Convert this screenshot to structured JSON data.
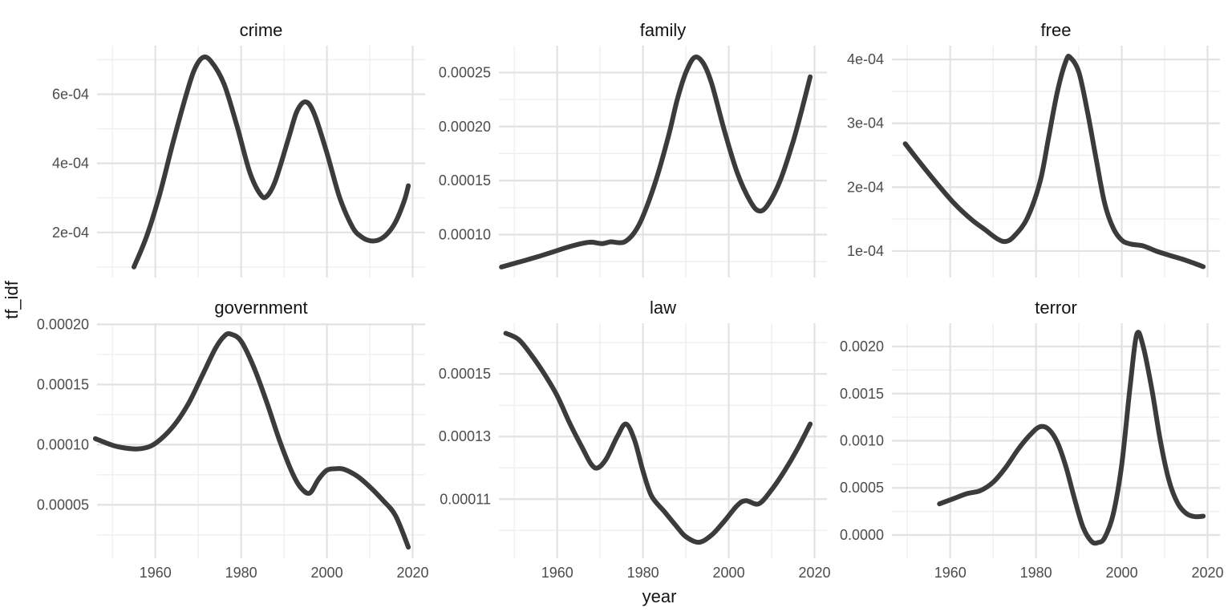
{
  "figure": {
    "ylabel": "tf_idf",
    "xlabel": "year",
    "background": "#ffffff",
    "line_color": "#3b3b3b",
    "line_width": 6,
    "grid_major_color": "#e2e2e2",
    "grid_minor_color": "#eeeeee",
    "axis_text_color": "#4c4c4c",
    "title_text_color": "#141414"
  },
  "chart_data": {
    "type": "line",
    "title": "",
    "xlabel": "year",
    "ylabel": "tf_idf",
    "grid": true,
    "legend": false,
    "xlim": [
      1946.4,
      2022.9
    ],
    "x_ticks": {
      "major": [
        {
          "v": 1960,
          "label": "1960"
        },
        {
          "v": 1980,
          "label": "1980"
        },
        {
          "v": 2000,
          "label": "2000"
        },
        {
          "v": 2020,
          "label": "2020"
        }
      ],
      "minor": [
        1950,
        1970,
        1990,
        2010
      ]
    },
    "facets": [
      {
        "title": "crime",
        "row": 0,
        "col": 0,
        "show_x_labels": false,
        "ylim": [
          6.95e-05,
          0.0007405
        ],
        "y_ticks": {
          "major": [
            {
              "v": 0.0002,
              "label": "2e-04"
            },
            {
              "v": 0.0004,
              "label": "4e-04"
            },
            {
              "v": 0.0006,
              "label": "6e-04"
            }
          ],
          "minor": [
            0.0001,
            0.0003,
            0.0005,
            0.0007
          ]
        },
        "points": [
          [
            1955,
            0.0001
          ],
          [
            1958,
            0.00019
          ],
          [
            1961,
            0.00031
          ],
          [
            1964,
            0.000455
          ],
          [
            1967,
            0.00059
          ],
          [
            1969,
            0.000668
          ],
          [
            1971,
            0.000706
          ],
          [
            1973,
            0.000695
          ],
          [
            1976,
            0.00063
          ],
          [
            1979,
            0.00051
          ],
          [
            1982,
            0.000375
          ],
          [
            1984.5,
            0.00031
          ],
          [
            1986,
            0.000305
          ],
          [
            1988,
            0.00035
          ],
          [
            1991,
            0.00047
          ],
          [
            1993,
            0.00055
          ],
          [
            1995,
            0.000578
          ],
          [
            1997,
            0.000545
          ],
          [
            2000,
            0.00043
          ],
          [
            2003,
            0.0003
          ],
          [
            2006,
            0.000215
          ],
          [
            2008,
            0.000188
          ],
          [
            2010,
            0.000176
          ],
          [
            2012,
            0.000178
          ],
          [
            2014,
            0.000195
          ],
          [
            2016,
            0.00023
          ],
          [
            2018,
            0.00029
          ],
          [
            2019,
            0.000335
          ]
        ]
      },
      {
        "title": "family",
        "row": 0,
        "col": 1,
        "show_x_labels": false,
        "ylim": [
          6.03e-05,
          0.0002748
        ],
        "y_ticks": {
          "major": [
            {
              "v": 0.0001,
              "label": "0.00010"
            },
            {
              "v": 0.00015,
              "label": "0.00015"
            },
            {
              "v": 0.0002,
              "label": "0.00020"
            },
            {
              "v": 0.00025,
              "label": "0.00025"
            }
          ],
          "minor": [
            7.5e-05,
            0.000125,
            0.000175,
            0.000225
          ]
        },
        "points": [
          [
            1947,
            7e-05
          ],
          [
            1951,
            7.45e-05
          ],
          [
            1955,
            7.9e-05
          ],
          [
            1959,
            8.4e-05
          ],
          [
            1963,
            8.9e-05
          ],
          [
            1966,
            9.2e-05
          ],
          [
            1968,
            9.3e-05
          ],
          [
            1970.5,
            9.17e-05
          ],
          [
            1972.5,
            9.33e-05
          ],
          [
            1974.5,
            9.25e-05
          ],
          [
            1976,
            9.4e-05
          ],
          [
            1978,
            0.000102
          ],
          [
            1980,
            0.000117
          ],
          [
            1983,
            0.00015
          ],
          [
            1986,
            0.000192
          ],
          [
            1988,
            0.000225
          ],
          [
            1990,
            0.00025
          ],
          [
            1992,
            0.000264
          ],
          [
            1994,
            0.000259
          ],
          [
            1996,
            0.00024
          ],
          [
            1999,
            0.000196
          ],
          [
            2002,
            0.000157
          ],
          [
            2005,
            0.000131
          ],
          [
            2007,
            0.000122
          ],
          [
            2009,
            0.000127
          ],
          [
            2012,
            0.00015
          ],
          [
            2015,
            0.000186
          ],
          [
            2017,
            0.000215
          ],
          [
            2019,
            0.000246
          ]
        ]
      },
      {
        "title": "free",
        "row": 0,
        "col": 2,
        "show_x_labels": false,
        "ylim": [
          5.85e-05,
          0.0004215
        ],
        "y_ticks": {
          "major": [
            {
              "v": 0.0001,
              "label": "1e-04"
            },
            {
              "v": 0.0002,
              "label": "2e-04"
            },
            {
              "v": 0.0003,
              "label": "3e-04"
            },
            {
              "v": 0.0004,
              "label": "4e-04"
            }
          ],
          "minor": [
            0.00015,
            0.00025,
            0.00035
          ]
        },
        "points": [
          [
            1949.5,
            0.000268
          ],
          [
            1953,
            0.000238
          ],
          [
            1957,
            0.000205
          ],
          [
            1961,
            0.000174
          ],
          [
            1965,
            0.000149
          ],
          [
            1968,
            0.000134
          ],
          [
            1971,
            0.000119
          ],
          [
            1973,
            0.000115
          ],
          [
            1975,
            0.000124
          ],
          [
            1978,
            0.000152
          ],
          [
            1981,
            0.00021
          ],
          [
            1983,
            0.00028
          ],
          [
            1985,
            0.00035
          ],
          [
            1987,
            0.000398
          ],
          [
            1988,
            0.000403
          ],
          [
            1990,
            0.00038
          ],
          [
            1992,
            0.000318
          ],
          [
            1994,
            0.000245
          ],
          [
            1996,
            0.000175
          ],
          [
            1998,
            0.000136
          ],
          [
            2000,
            0.000117
          ],
          [
            2002,
            0.000111
          ],
          [
            2005,
            0.000108
          ],
          [
            2008,
            0.0001
          ],
          [
            2011,
            9.35e-05
          ],
          [
            2014,
            8.75e-05
          ],
          [
            2017,
            8.05e-05
          ],
          [
            2019,
            7.55e-05
          ]
        ]
      },
      {
        "title": "government",
        "row": 1,
        "col": 0,
        "show_x_labels": true,
        "ylim": [
          5.6e-06,
          0.0002009
        ],
        "y_ticks": {
          "major": [
            {
              "v": 5e-05,
              "label": "0.00005"
            },
            {
              "v": 0.0001,
              "label": "0.00010"
            },
            {
              "v": 0.00015,
              "label": "0.00015"
            },
            {
              "v": 0.0002,
              "label": "0.00020"
            }
          ],
          "minor": [
            2.5e-05,
            7.5e-05,
            0.000125,
            0.000175
          ]
        },
        "points": [
          [
            1946,
            0.000105
          ],
          [
            1950,
            9.95e-05
          ],
          [
            1953,
            9.72e-05
          ],
          [
            1956,
            9.65e-05
          ],
          [
            1959,
            9.9e-05
          ],
          [
            1962,
            0.000107
          ],
          [
            1965,
            0.000119
          ],
          [
            1968,
            0.000136
          ],
          [
            1971,
            0.000158
          ],
          [
            1974,
            0.00018
          ],
          [
            1976,
            0.00019
          ],
          [
            1977.5,
            0.000192
          ],
          [
            1980,
            0.000186
          ],
          [
            1983,
            0.000164
          ],
          [
            1986,
            0.000135
          ],
          [
            1989,
            0.000103
          ],
          [
            1992,
            7.6e-05
          ],
          [
            1994,
            6.38e-05
          ],
          [
            1996,
            5.98e-05
          ],
          [
            1998,
            7.1e-05
          ],
          [
            2000,
            7.88e-05
          ],
          [
            2002,
            8e-05
          ],
          [
            2004,
            7.95e-05
          ],
          [
            2007,
            7.4e-05
          ],
          [
            2010,
            6.5e-05
          ],
          [
            2013,
            5.4e-05
          ],
          [
            2016,
            4.1e-05
          ],
          [
            2019,
            1.48e-05
          ]
        ]
      },
      {
        "title": "law",
        "row": 1,
        "col": 1,
        "show_x_labels": true,
        "ylim": [
          9.11e-05,
          0.0001662
        ],
        "y_ticks": {
          "major": [
            {
              "v": 0.00011,
              "label": "0.00011"
            },
            {
              "v": 0.00013,
              "label": "0.00013"
            },
            {
              "v": 0.00015,
              "label": "0.00015"
            }
          ],
          "minor": [
            0.0001,
            0.00012,
            0.00014,
            0.00016
          ]
        },
        "points": [
          [
            1948,
            0.000163
          ],
          [
            1951,
            0.000161
          ],
          [
            1954,
            0.000156
          ],
          [
            1957,
            0.00015
          ],
          [
            1960,
            0.000143
          ],
          [
            1963,
            0.000134
          ],
          [
            1966,
            0.000126
          ],
          [
            1968,
            0.000121
          ],
          [
            1969.5,
            0.00012
          ],
          [
            1971.5,
            0.000123
          ],
          [
            1974,
            0.00013
          ],
          [
            1976,
            0.000134
          ],
          [
            1978,
            0.000129
          ],
          [
            1980,
            0.000119
          ],
          [
            1982,
            0.000111
          ],
          [
            1985,
            0.000106
          ],
          [
            1988,
            0.000101
          ],
          [
            1990,
            9.8e-05
          ],
          [
            1993,
            9.62e-05
          ],
          [
            1996,
            9.85e-05
          ],
          [
            1999,
            0.000103
          ],
          [
            2002,
            0.000108
          ],
          [
            2004,
            0.0001095
          ],
          [
            2007,
            0.0001085
          ],
          [
            2010,
            0.000113
          ],
          [
            2013,
            0.000119
          ],
          [
            2016,
            0.000126
          ],
          [
            2019,
            0.000134
          ]
        ]
      },
      {
        "title": "terror",
        "row": 1,
        "col": 2,
        "show_x_labels": true,
        "ylim": [
          -0.000247,
          0.002247
        ],
        "y_ticks": {
          "major": [
            {
              "v": 0.0,
              "label": "0.0000"
            },
            {
              "v": 0.0005,
              "label": "0.0005"
            },
            {
              "v": 0.001,
              "label": "0.0010"
            },
            {
              "v": 0.0015,
              "label": "0.0015"
            },
            {
              "v": 0.002,
              "label": "0.0020"
            }
          ],
          "minor": [
            0.00025,
            0.00075,
            0.00125,
            0.00175
          ]
        },
        "points": [
          [
            1957.5,
            0.00033
          ],
          [
            1961,
            0.00039
          ],
          [
            1964,
            0.00044
          ],
          [
            1967,
            0.00047
          ],
          [
            1970,
            0.00056
          ],
          [
            1973,
            0.00072
          ],
          [
            1976,
            0.00092
          ],
          [
            1979,
            0.00108
          ],
          [
            1981,
            0.00115
          ],
          [
            1983,
            0.00112
          ],
          [
            1985,
            0.00098
          ],
          [
            1987,
            0.00072
          ],
          [
            1989,
            0.00038
          ],
          [
            1991,
            8e-05
          ],
          [
            1993,
            -7e-05
          ],
          [
            1994.5,
            -8e-05
          ],
          [
            1996,
            -3e-05
          ],
          [
            1998,
            0.00022
          ],
          [
            2000,
            0.00075
          ],
          [
            2002,
            0.0016
          ],
          [
            2003.5,
            0.00213
          ],
          [
            2005,
            0.002
          ],
          [
            2007,
            0.00155
          ],
          [
            2009,
            0.001
          ],
          [
            2011,
            0.00058
          ],
          [
            2013,
            0.00034
          ],
          [
            2015,
            0.00023
          ],
          [
            2017,
            0.000195
          ],
          [
            2019,
            0.0002
          ]
        ]
      }
    ]
  }
}
